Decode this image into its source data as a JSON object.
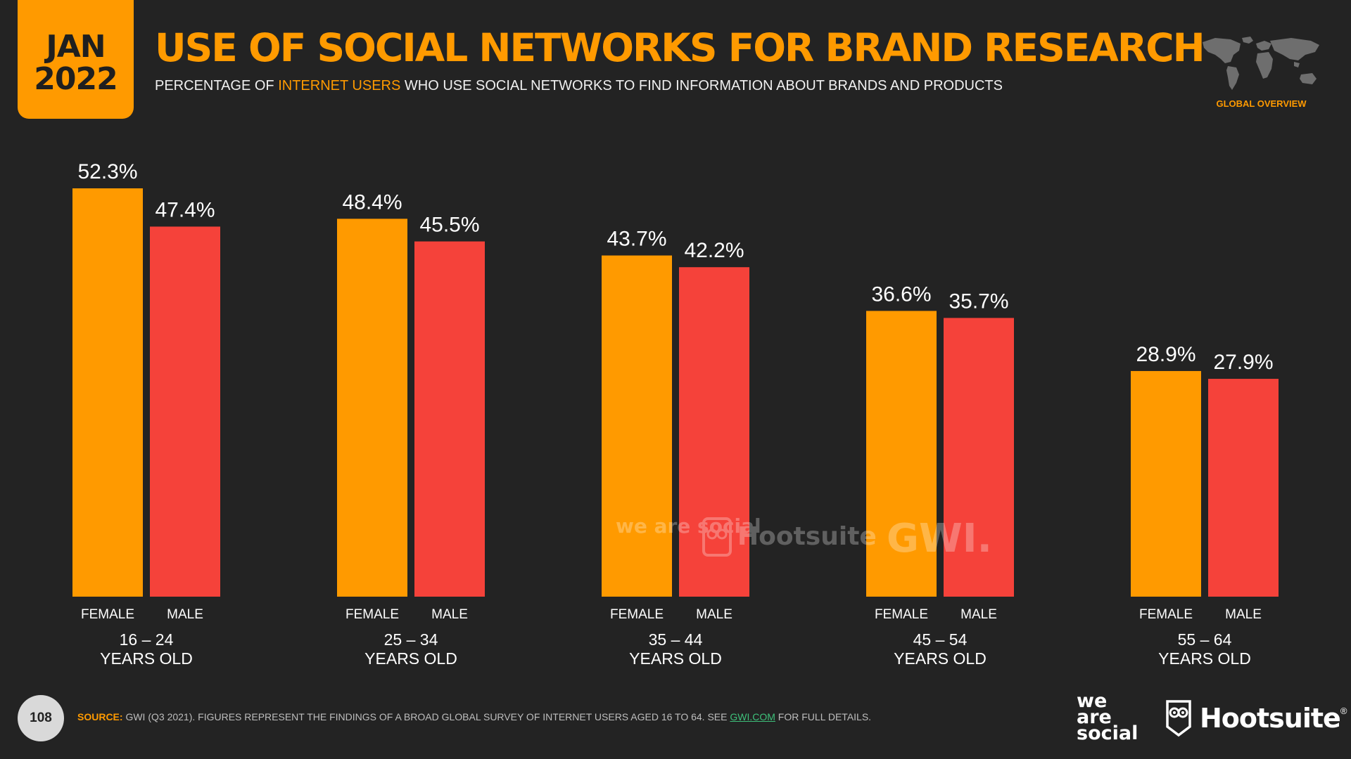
{
  "header": {
    "date_month": "JAN",
    "date_year": "2022",
    "title": "USE OF SOCIAL NETWORKS FOR BRAND RESEARCH",
    "subtitle_prefix": "PERCENTAGE OF ",
    "subtitle_highlight": "INTERNET USERS",
    "subtitle_suffix": " WHO USE SOCIAL NETWORKS TO FIND INFORMATION ABOUT BRANDS AND PRODUCTS",
    "region_label": "GLOBAL OVERVIEW"
  },
  "chart_data": {
    "type": "bar",
    "title": "USE OF SOCIAL NETWORKS FOR BRAND RESEARCH",
    "categories": [
      "16 – 24",
      "25 – 34",
      "35 – 44",
      "45 – 54",
      "55 – 64"
    ],
    "category_sublabel": "YEARS OLD",
    "series": [
      {
        "name": "FEMALE",
        "color": "#ff9a00",
        "values": [
          52.3,
          48.4,
          43.7,
          36.6,
          28.9
        ]
      },
      {
        "name": "MALE",
        "color": "#f5423a",
        "values": [
          47.4,
          45.5,
          42.2,
          35.7,
          27.9
        ]
      }
    ],
    "value_suffix": "%",
    "ylim": [
      0,
      55
    ],
    "grid": false,
    "legend": "none"
  },
  "watermark": {
    "brand_1": "we are social",
    "brand_2": "Hootsuite",
    "brand_3": "GWI."
  },
  "footer": {
    "page_number": "108",
    "source_label": "SOURCE:",
    "source_text": " GWI (Q3 2021). FIGURES REPRESENT THE FINDINGS OF A BROAD GLOBAL SURVEY OF INTERNET USERS AGED 16 TO 64. SEE ",
    "source_link": "GWI.COM",
    "source_end": " FOR FULL DETAILS.",
    "logo_was_1": "we",
    "logo_was_2": "are",
    "logo_was_3": "social",
    "logo_hootsuite": "Hootsuite",
    "registered_mark": "®"
  }
}
